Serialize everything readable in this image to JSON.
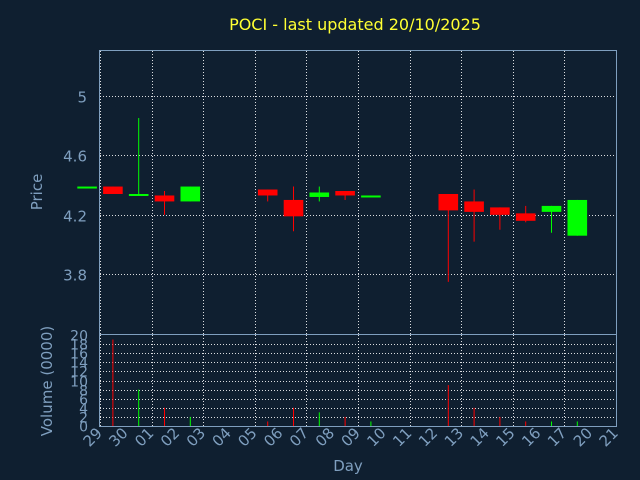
{
  "chart_data": {
    "type": "candlestick",
    "title": "POCI - last updated 20/10/2025",
    "xlabel": "Day",
    "colors": {
      "up": "#00ff00",
      "down": "#ff0000",
      "background": "#0f1f30",
      "axis": "#7f9fbf",
      "title": "#ffff33"
    },
    "x": [
      "29",
      "30",
      "01",
      "02",
      "03",
      "04",
      "05",
      "06",
      "07",
      "08",
      "09",
      "10",
      "11",
      "12",
      "13",
      "14",
      "15",
      "16",
      "17",
      "20",
      "21"
    ],
    "price_panel": {
      "ylabel": "Price",
      "yticks": [
        "5",
        "4.6",
        "4.2",
        "3.8"
      ],
      "ylim": [
        3.4,
        5.3
      ],
      "grid": true
    },
    "volume_panel": {
      "ylabel": "Volume (0000)",
      "yticks": [
        "20",
        "18",
        "16",
        "14",
        "12",
        "10",
        "8",
        "6",
        "4",
        "2",
        "0"
      ],
      "ylim": [
        0,
        20
      ],
      "grid": true
    },
    "candles": [
      {
        "x": "29",
        "open": 4.39,
        "high": 4.39,
        "low": 4.39,
        "close": 4.39,
        "volume": 0
      },
      {
        "x": "30",
        "open": 4.39,
        "high": 4.39,
        "low": 4.34,
        "close": 4.34,
        "volume": 19
      },
      {
        "x": "01",
        "open": 4.33,
        "high": 4.85,
        "low": 4.33,
        "close": 4.34,
        "volume": 8
      },
      {
        "x": "02",
        "open": 4.33,
        "high": 4.36,
        "low": 4.2,
        "close": 4.29,
        "volume": 4
      },
      {
        "x": "03",
        "open": 4.29,
        "high": 4.39,
        "low": 4.29,
        "close": 4.39,
        "volume": 2
      },
      {
        "x": "06",
        "open": 4.37,
        "high": 4.37,
        "low": 4.29,
        "close": 4.33,
        "volume": 1
      },
      {
        "x": "07",
        "open": 4.3,
        "high": 4.39,
        "low": 4.09,
        "close": 4.19,
        "volume": 4
      },
      {
        "x": "08",
        "open": 4.32,
        "high": 4.39,
        "low": 4.29,
        "close": 4.35,
        "volume": 3
      },
      {
        "x": "09",
        "open": 4.36,
        "high": 4.36,
        "low": 4.3,
        "close": 4.33,
        "volume": 2
      },
      {
        "x": "10",
        "open": 4.32,
        "high": 4.33,
        "low": 4.32,
        "close": 4.33,
        "volume": 1
      },
      {
        "x": "13",
        "open": 4.34,
        "high": 4.34,
        "low": 3.75,
        "close": 4.23,
        "volume": 9
      },
      {
        "x": "14",
        "open": 4.29,
        "high": 4.37,
        "low": 4.02,
        "close": 4.22,
        "volume": 4
      },
      {
        "x": "15",
        "open": 4.25,
        "high": 4.25,
        "low": 4.1,
        "close": 4.2,
        "volume": 2
      },
      {
        "x": "16",
        "open": 4.21,
        "high": 4.26,
        "low": 4.15,
        "close": 4.16,
        "volume": 1
      },
      {
        "x": "17",
        "open": 4.22,
        "high": 4.26,
        "low": 4.08,
        "close": 4.26,
        "volume": 1
      },
      {
        "x": "20",
        "open": 4.06,
        "high": 4.3,
        "low": 4.06,
        "close": 4.3,
        "volume": 1
      }
    ]
  }
}
